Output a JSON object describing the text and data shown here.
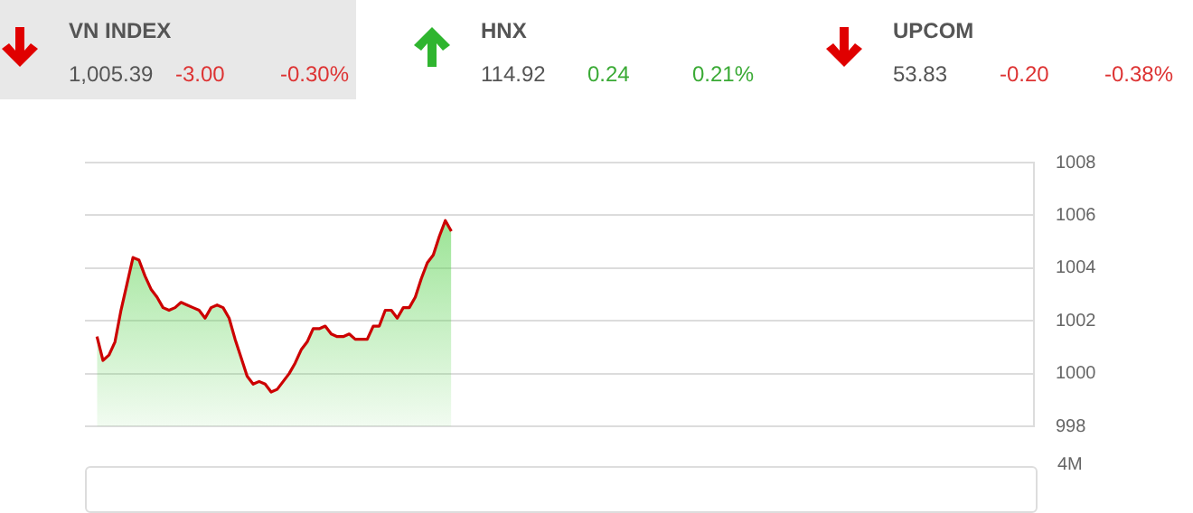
{
  "chart_data": [
    {
      "type": "other",
      "annotations": [
        "VN INDEX",
        "1,005.39",
        "-3.00",
        "-0.30%",
        "HNX",
        "114.92",
        "0.24",
        "0.21%",
        "UPCOM",
        "53.83",
        "-0.20",
        "-0.38%"
      ]
    },
    {
      "type": "area",
      "categories": [
        null,
        null,
        null,
        null,
        null,
        null,
        null,
        null,
        null,
        null,
        null,
        null,
        null,
        null,
        null,
        null,
        null,
        null,
        null,
        null,
        null,
        null,
        null,
        null,
        null,
        null,
        null,
        null,
        null,
        null,
        null,
        null,
        null,
        null,
        null,
        null,
        null,
        null,
        null,
        null,
        null,
        null,
        null,
        null,
        null,
        null,
        null,
        null,
        null,
        null,
        null,
        null,
        null,
        null,
        null,
        null,
        null,
        null,
        null,
        null,
        null,
        null,
        null,
        null,
        null,
        null,
        null,
        null,
        null,
        null,
        null,
        null,
        null,
        null,
        null,
        null,
        null,
        null,
        null,
        null,
        null,
        null,
        null,
        null,
        null,
        null,
        null,
        null,
        null,
        null,
        null,
        null,
        null,
        null,
        null,
        null,
        null,
        null,
        null,
        null,
        null,
        null,
        null,
        null,
        null,
        null,
        null,
        null,
        null,
        null,
        null,
        null,
        null,
        null,
        null,
        null,
        null,
        null,
        null,
        null,
        null,
        null,
        null,
        null,
        null,
        null,
        null,
        null,
        null,
        null,
        null,
        null,
        null,
        null,
        null,
        null,
        null,
        null,
        null,
        null,
        null,
        null,
        null,
        null,
        null,
        null,
        null,
        null,
        null,
        null,
        null,
        null,
        null,
        null,
        null,
        null,
        null,
        null,
        null
      ],
      "series": [
        {
          "color": "#cc0000",
          "values": [
            null,
            null,
            1001.4,
            1000.5,
            1000.7,
            1001.2,
            1002.4,
            1003.4,
            1004.4,
            1004.3,
            1003.7,
            1003.2,
            1002.9,
            1002.5,
            1002.4,
            1002.5,
            1002.7,
            1002.6,
            1002.5,
            1002.4,
            1002.1,
            1002.5,
            1002.6,
            1002.5,
            1002.1,
            1001.3,
            1000.6,
            999.9,
            999.6,
            999.7,
            999.6,
            999.3,
            999.4,
            999.7,
            1000.0,
            1000.4,
            1000.9,
            1001.2,
            1001.7,
            1001.7,
            1001.8,
            1001.5,
            1001.4,
            1001.4,
            1001.5,
            1001.3,
            1001.3,
            1001.3,
            1001.8,
            1001.8,
            1002.4,
            1002.4,
            1002.1,
            1002.5,
            1002.5,
            1002.9,
            1003.6,
            1004.2,
            1004.5,
            1005.2,
            1005.8,
            1005.4,
            null,
            null,
            null,
            null,
            null,
            null,
            null,
            null,
            null,
            null,
            null,
            null,
            null,
            null,
            null,
            null,
            null,
            null,
            null,
            null,
            null,
            null,
            null,
            null,
            null,
            null,
            null,
            null,
            null,
            null,
            null,
            null,
            null,
            null,
            null,
            null,
            null,
            null,
            null,
            null,
            null,
            null,
            null,
            null,
            null,
            null,
            null,
            null,
            null,
            null,
            null,
            null,
            null,
            null,
            null,
            null,
            null,
            null,
            null,
            null,
            null,
            null,
            null,
            null,
            null,
            null,
            null,
            null,
            null,
            null,
            null,
            null,
            null,
            null,
            null,
            null,
            null,
            null,
            null,
            null,
            null,
            null,
            null,
            null,
            null,
            null,
            null,
            null,
            null,
            null,
            null,
            null,
            null,
            null,
            null,
            null,
            null
          ]
        }
      ],
      "ylim": [
        998,
        1008
      ],
      "yticks": [
        998,
        1000,
        1002,
        1004,
        1006,
        1008
      ],
      "grid": "y",
      "legend": false,
      "tick_labels": "y",
      "marker": "none",
      "line_style": "solid"
    },
    {
      "type": "other",
      "annotations": [
        "4M"
      ]
    }
  ]
}
